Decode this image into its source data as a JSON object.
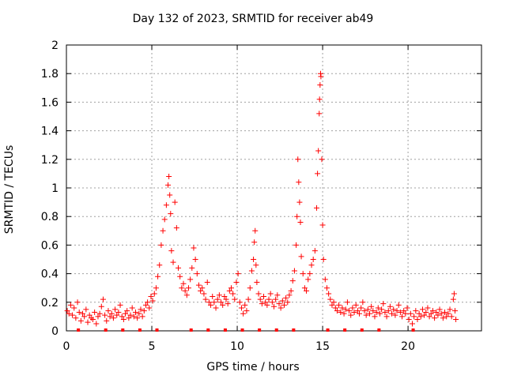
{
  "chart_data": {
    "type": "scatter",
    "title": "Day 132 of 2023, SRMTID for receiver ab49",
    "xlabel": "GPS time / hours",
    "ylabel": "SRMTID / TECUs",
    "xlim": [
      0,
      24.3
    ],
    "ylim": [
      0,
      2
    ],
    "xticks": [
      0,
      5,
      10,
      15,
      20
    ],
    "xtick_labels": [
      "0",
      "5",
      "10",
      "15",
      "20"
    ],
    "yticks": [
      0,
      0.2,
      0.4,
      0.6,
      0.8,
      1,
      1.2,
      1.4,
      1.6,
      1.8,
      2
    ],
    "ytick_labels": [
      "0",
      "0.2",
      "0.4",
      "0.6",
      "0.8",
      "1",
      "1.2",
      "1.4",
      "1.6",
      "1.8",
      "2"
    ],
    "grid": true,
    "marker": "+",
    "color": "#ff0000",
    "series": [
      {
        "name": "SRMTID",
        "points": [
          [
            0.05,
            0.14
          ],
          [
            0.15,
            0.12
          ],
          [
            0.25,
            0.18
          ],
          [
            0.35,
            0.11
          ],
          [
            0.45,
            0.16
          ],
          [
            0.55,
            0.09
          ],
          [
            0.65,
            0.2
          ],
          [
            0.75,
            0.13
          ],
          [
            0.85,
            0.07
          ],
          [
            0.95,
            0.12
          ],
          [
            1.05,
            0.1
          ],
          [
            1.15,
            0.15
          ],
          [
            1.25,
            0.06
          ],
          [
            1.35,
            0.11
          ],
          [
            1.45,
            0.09
          ],
          [
            1.55,
            0.08
          ],
          [
            1.65,
            0.13
          ],
          [
            1.75,
            0.05
          ],
          [
            1.85,
            0.1
          ],
          [
            1.95,
            0.12
          ],
          [
            2.05,
            0.17
          ],
          [
            2.15,
            0.22
          ],
          [
            2.25,
            0.11
          ],
          [
            2.35,
            0.07
          ],
          [
            2.45,
            0.14
          ],
          [
            2.55,
            0.1
          ],
          [
            2.65,
            0.12
          ],
          [
            2.75,
            0.09
          ],
          [
            2.85,
            0.15
          ],
          [
            2.95,
            0.11
          ],
          [
            3.05,
            0.13
          ],
          [
            3.15,
            0.18
          ],
          [
            3.25,
            0.1
          ],
          [
            3.35,
            0.08
          ],
          [
            3.45,
            0.12
          ],
          [
            3.55,
            0.14
          ],
          [
            3.65,
            0.09
          ],
          [
            3.75,
            0.11
          ],
          [
            3.85,
            0.16
          ],
          [
            3.95,
            0.1
          ],
          [
            4.05,
            0.13
          ],
          [
            4.15,
            0.09
          ],
          [
            4.25,
            0.12
          ],
          [
            4.35,
            0.15
          ],
          [
            4.45,
            0.1
          ],
          [
            4.55,
            0.14
          ],
          [
            4.65,
            0.18
          ],
          [
            4.75,
            0.2
          ],
          [
            4.85,
            0.16
          ],
          [
            4.95,
            0.24
          ],
          [
            5.05,
            0.21
          ],
          [
            5.15,
            0.26
          ],
          [
            5.25,
            0.3
          ],
          [
            5.35,
            0.38
          ],
          [
            5.45,
            0.46
          ],
          [
            5.55,
            0.6
          ],
          [
            5.65,
            0.7
          ],
          [
            5.75,
            0.78
          ],
          [
            5.85,
            0.88
          ],
          [
            5.95,
            1.02
          ],
          [
            6.0,
            1.08
          ],
          [
            6.05,
            0.95
          ],
          [
            6.1,
            0.82
          ],
          [
            6.15,
            0.56
          ],
          [
            6.25,
            0.48
          ],
          [
            6.35,
            0.9
          ],
          [
            6.45,
            0.72
          ],
          [
            6.55,
            0.44
          ],
          [
            6.65,
            0.38
          ],
          [
            6.75,
            0.3
          ],
          [
            6.85,
            0.33
          ],
          [
            6.95,
            0.28
          ],
          [
            7.05,
            0.25
          ],
          [
            7.15,
            0.3
          ],
          [
            7.25,
            0.36
          ],
          [
            7.35,
            0.44
          ],
          [
            7.45,
            0.58
          ],
          [
            7.55,
            0.5
          ],
          [
            7.65,
            0.4
          ],
          [
            7.75,
            0.32
          ],
          [
            7.85,
            0.28
          ],
          [
            7.95,
            0.3
          ],
          [
            8.05,
            0.26
          ],
          [
            8.15,
            0.22
          ],
          [
            8.25,
            0.34
          ],
          [
            8.35,
            0.2
          ],
          [
            8.45,
            0.18
          ],
          [
            8.55,
            0.24
          ],
          [
            8.65,
            0.2
          ],
          [
            8.75,
            0.16
          ],
          [
            8.85,
            0.22
          ],
          [
            8.95,
            0.25
          ],
          [
            9.05,
            0.2
          ],
          [
            9.15,
            0.18
          ],
          [
            9.25,
            0.24
          ],
          [
            9.35,
            0.22
          ],
          [
            9.45,
            0.19
          ],
          [
            9.55,
            0.28
          ],
          [
            9.65,
            0.3
          ],
          [
            9.75,
            0.26
          ],
          [
            9.85,
            0.22
          ],
          [
            9.95,
            0.34
          ],
          [
            10.05,
            0.4
          ],
          [
            10.15,
            0.2
          ],
          [
            10.25,
            0.16
          ],
          [
            10.35,
            0.12
          ],
          [
            10.45,
            0.18
          ],
          [
            10.55,
            0.14
          ],
          [
            10.65,
            0.22
          ],
          [
            10.75,
            0.3
          ],
          [
            10.85,
            0.42
          ],
          [
            10.95,
            0.5
          ],
          [
            11.0,
            0.62
          ],
          [
            11.05,
            0.7
          ],
          [
            11.1,
            0.46
          ],
          [
            11.15,
            0.34
          ],
          [
            11.25,
            0.26
          ],
          [
            11.35,
            0.22
          ],
          [
            11.45,
            0.19
          ],
          [
            11.55,
            0.24
          ],
          [
            11.65,
            0.2
          ],
          [
            11.75,
            0.18
          ],
          [
            11.85,
            0.22
          ],
          [
            11.95,
            0.26
          ],
          [
            12.05,
            0.2
          ],
          [
            12.15,
            0.17
          ],
          [
            12.25,
            0.22
          ],
          [
            12.35,
            0.25
          ],
          [
            12.45,
            0.19
          ],
          [
            12.55,
            0.16
          ],
          [
            12.65,
            0.21
          ],
          [
            12.75,
            0.18
          ],
          [
            12.85,
            0.23
          ],
          [
            12.95,
            0.2
          ],
          [
            13.05,
            0.25
          ],
          [
            13.15,
            0.28
          ],
          [
            13.25,
            0.35
          ],
          [
            13.35,
            0.42
          ],
          [
            13.45,
            0.6
          ],
          [
            13.5,
            0.8
          ],
          [
            13.55,
            1.2
          ],
          [
            13.6,
            1.04
          ],
          [
            13.65,
            0.9
          ],
          [
            13.7,
            0.76
          ],
          [
            13.75,
            0.52
          ],
          [
            13.85,
            0.4
          ],
          [
            13.95,
            0.3
          ],
          [
            14.05,
            0.28
          ],
          [
            14.15,
            0.36
          ],
          [
            14.25,
            0.4
          ],
          [
            14.35,
            0.46
          ],
          [
            14.45,
            0.5
          ],
          [
            14.55,
            0.56
          ],
          [
            14.65,
            0.86
          ],
          [
            14.7,
            1.1
          ],
          [
            14.75,
            1.26
          ],
          [
            14.8,
            1.52
          ],
          [
            14.82,
            1.62
          ],
          [
            14.85,
            1.72
          ],
          [
            14.88,
            1.8
          ],
          [
            14.9,
            1.78
          ],
          [
            14.95,
            1.2
          ],
          [
            15.0,
            0.74
          ],
          [
            15.05,
            0.5
          ],
          [
            15.15,
            0.36
          ],
          [
            15.25,
            0.3
          ],
          [
            15.35,
            0.26
          ],
          [
            15.45,
            0.22
          ],
          [
            15.55,
            0.18
          ],
          [
            15.65,
            0.2
          ],
          [
            15.75,
            0.16
          ],
          [
            15.85,
            0.14
          ],
          [
            15.95,
            0.18
          ],
          [
            16.05,
            0.13
          ],
          [
            16.15,
            0.16
          ],
          [
            16.25,
            0.12
          ],
          [
            16.35,
            0.15
          ],
          [
            16.45,
            0.2
          ],
          [
            16.55,
            0.14
          ],
          [
            16.65,
            0.11
          ],
          [
            16.75,
            0.16
          ],
          [
            16.85,
            0.13
          ],
          [
            16.95,
            0.18
          ],
          [
            17.05,
            0.14
          ],
          [
            17.15,
            0.12
          ],
          [
            17.25,
            0.16
          ],
          [
            17.35,
            0.2
          ],
          [
            17.45,
            0.14
          ],
          [
            17.55,
            0.11
          ],
          [
            17.65,
            0.15
          ],
          [
            17.75,
            0.12
          ],
          [
            17.85,
            0.17
          ],
          [
            17.95,
            0.14
          ],
          [
            18.05,
            0.1
          ],
          [
            18.15,
            0.13
          ],
          [
            18.25,
            0.16
          ],
          [
            18.35,
            0.12
          ],
          [
            18.45,
            0.15
          ],
          [
            18.55,
            0.19
          ],
          [
            18.65,
            0.13
          ],
          [
            18.75,
            0.1
          ],
          [
            18.85,
            0.14
          ],
          [
            18.95,
            0.17
          ],
          [
            19.05,
            0.12
          ],
          [
            19.15,
            0.15
          ],
          [
            19.25,
            0.11
          ],
          [
            19.35,
            0.14
          ],
          [
            19.45,
            0.18
          ],
          [
            19.55,
            0.13
          ],
          [
            19.65,
            0.1
          ],
          [
            19.75,
            0.14
          ],
          [
            19.85,
            0.12
          ],
          [
            19.95,
            0.16
          ],
          [
            20.05,
            0.08
          ],
          [
            20.15,
            0.12
          ],
          [
            20.25,
            0.05
          ],
          [
            20.35,
            0.1
          ],
          [
            20.45,
            0.14
          ],
          [
            20.55,
            0.08
          ],
          [
            20.65,
            0.12
          ],
          [
            20.75,
            0.1
          ],
          [
            20.85,
            0.15
          ],
          [
            20.95,
            0.11
          ],
          [
            21.05,
            0.13
          ],
          [
            21.15,
            0.16
          ],
          [
            21.25,
            0.1
          ],
          [
            21.35,
            0.12
          ],
          [
            21.45,
            0.14
          ],
          [
            21.55,
            0.09
          ],
          [
            21.65,
            0.13
          ],
          [
            21.75,
            0.11
          ],
          [
            21.85,
            0.15
          ],
          [
            21.95,
            0.12
          ],
          [
            22.05,
            0.09
          ],
          [
            22.15,
            0.13
          ],
          [
            22.25,
            0.1
          ],
          [
            22.35,
            0.12
          ],
          [
            22.45,
            0.15
          ],
          [
            22.55,
            0.1
          ],
          [
            22.65,
            0.22
          ],
          [
            22.7,
            0.26
          ],
          [
            22.75,
            0.14
          ],
          [
            22.8,
            0.08
          ]
        ]
      }
    ],
    "gap_markers": [
      0.7,
      2.3,
      3.3,
      4.3,
      5.3,
      7.3,
      8.3,
      9.3,
      10.3,
      11.3,
      12.3,
      13.3,
      15.3,
      16.3,
      17.3,
      18.3,
      20.3
    ]
  }
}
